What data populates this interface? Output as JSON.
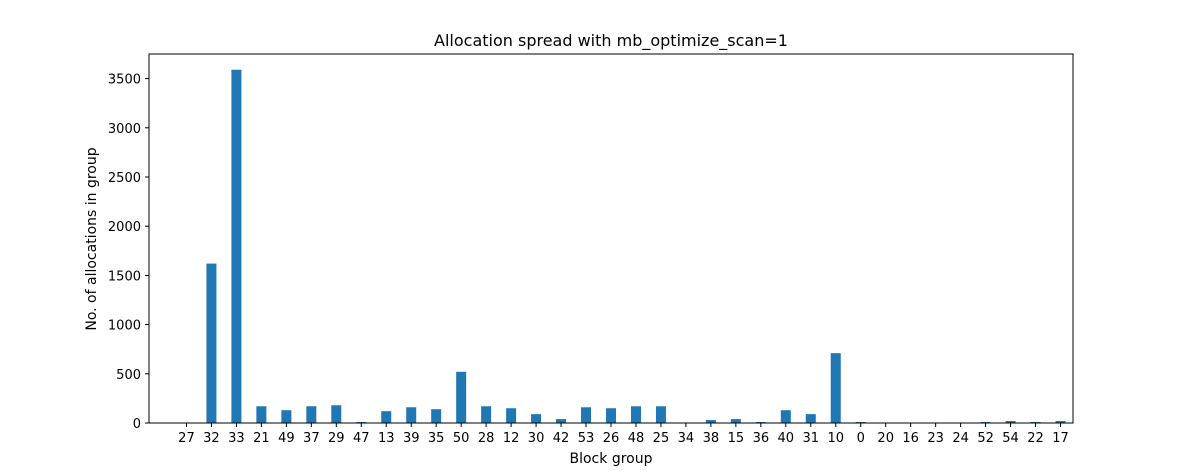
{
  "chart_data": {
    "type": "bar",
    "title": "Allocation spread with mb_optimize_scan=1",
    "xlabel": "Block group",
    "ylabel": "No. of allocations in group",
    "ylim": [
      0,
      3750
    ],
    "yticks": [
      0,
      500,
      1000,
      1500,
      2000,
      2500,
      3000,
      3500
    ],
    "categories": [
      "27",
      "32",
      "33",
      "21",
      "49",
      "37",
      "29",
      "47",
      "13",
      "39",
      "35",
      "50",
      "28",
      "12",
      "30",
      "42",
      "53",
      "26",
      "48",
      "25",
      "34",
      "38",
      "15",
      "36",
      "40",
      "31",
      "10",
      "0",
      "20",
      "16",
      "23",
      "24",
      "52",
      "54",
      "22",
      "17"
    ],
    "values": [
      0,
      1620,
      3590,
      170,
      130,
      170,
      180,
      10,
      120,
      160,
      140,
      520,
      170,
      150,
      90,
      40,
      160,
      150,
      170,
      170,
      0,
      30,
      40,
      10,
      130,
      90,
      710,
      10,
      0,
      0,
      0,
      0,
      10,
      20,
      10,
      20
    ],
    "grid": false,
    "legend": "none",
    "bar_color": "#1f77b4"
  }
}
